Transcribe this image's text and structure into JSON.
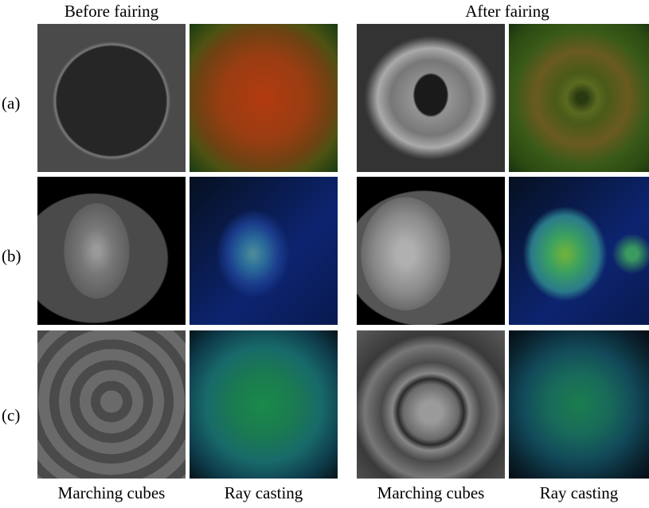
{
  "header": {
    "left": "Before fairing",
    "right": "After fairing"
  },
  "row_labels": [
    "(a)",
    "(b)",
    "(c)"
  ],
  "column_labels": [
    "Marching cubes",
    "Ray casting",
    "Marching cubes",
    "Ray casting"
  ]
}
